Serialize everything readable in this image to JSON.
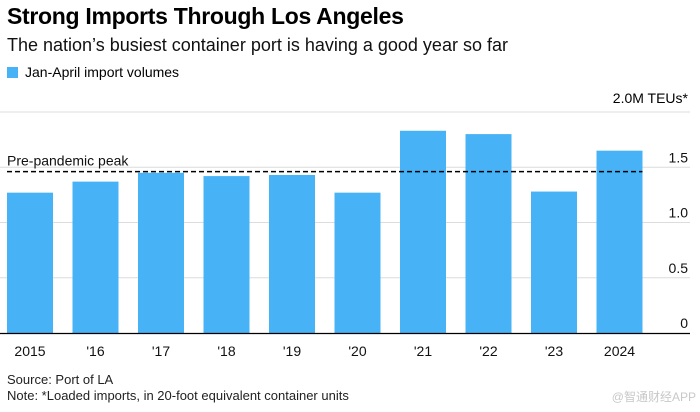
{
  "title": "Strong Imports Through Los Angeles",
  "subtitle": "The nation’s busiest container port is having a good year so far",
  "legend": {
    "label": "Jan-April import volumes",
    "color": "#47b3f6"
  },
  "unit_label": "2.0M TEUs*",
  "source": "Source: Port of LA",
  "note": "Note: *Loaded imports, in 20-foot equivalent container units",
  "watermark": "@智通财经APP",
  "chart_data": {
    "type": "bar",
    "title": "Strong Imports Through Los Angeles",
    "subtitle": "The nation’s busiest container port is having a good year so far",
    "xlabel": "",
    "ylabel": "M TEUs",
    "categories": [
      "2015",
      "'16",
      "'17",
      "'18",
      "'19",
      "'20",
      "'21",
      "'22",
      "'23",
      "2024"
    ],
    "series": [
      {
        "name": "Jan-April import volumes",
        "color": "#47b3f6",
        "values": [
          1.27,
          1.37,
          1.45,
          1.42,
          1.43,
          1.27,
          1.83,
          1.8,
          1.28,
          1.65
        ]
      }
    ],
    "ylim": [
      0,
      2.0
    ],
    "yticks": [
      0,
      0.5,
      1.0,
      1.5,
      2.0
    ],
    "ytick_labels": [
      "0",
      "0.5",
      "1.0",
      "1.5",
      "2.0M TEUs*"
    ],
    "grid": true,
    "yaxis_position": "right",
    "legend_position": "top-left",
    "annotations": [
      {
        "type": "hline",
        "value": 1.46,
        "style": "dashed",
        "label": "Pre-pandemic peak"
      }
    ]
  }
}
